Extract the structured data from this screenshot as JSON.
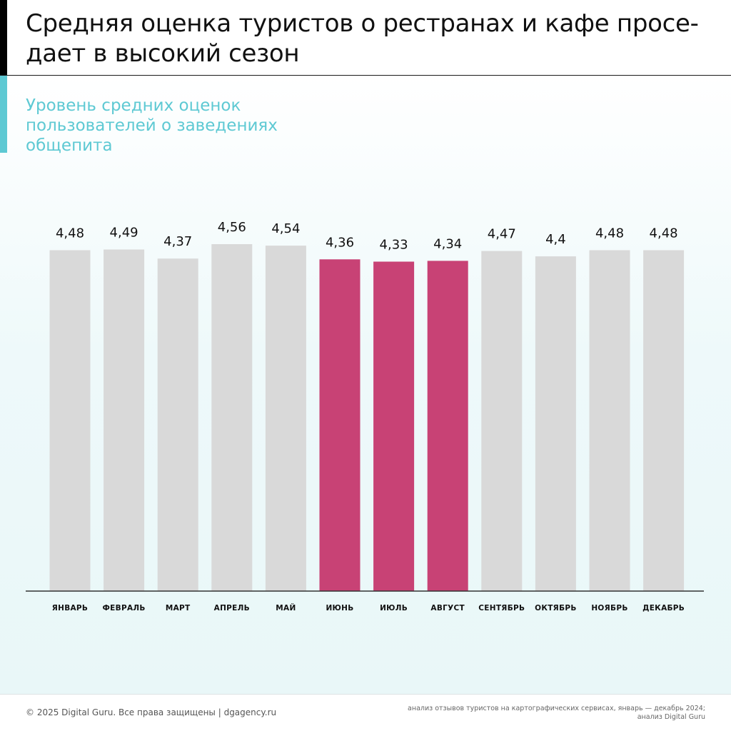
{
  "header": {
    "title": "Средняя оценка туристов о рестранах и кафе просе­дает в высокий сезон"
  },
  "subtitle": "Уровень средних оценок пользователей о заведениях общепита",
  "colors": {
    "bar_default": "#d9d9d9",
    "bar_highlight": "#c84275",
    "accent_teal": "#5ec9d3",
    "axis": "#333333"
  },
  "chart_data": {
    "type": "bar",
    "categories": [
      "ЯНВАРЬ",
      "ФЕВРАЛЬ",
      "МАРТ",
      "АПРЕЛЬ",
      "МАЙ",
      "ИЮНЬ",
      "ИЮЛЬ",
      "АВГУСТ",
      "СЕНТЯБРЬ",
      "ОКТЯБРЬ",
      "НОЯБРЬ",
      "ДЕКАБРЬ"
    ],
    "values": [
      4.48,
      4.49,
      4.37,
      4.56,
      4.54,
      4.36,
      4.33,
      4.34,
      4.47,
      4.4,
      4.48,
      4.48
    ],
    "value_labels": [
      "4,48",
      "4,49",
      "4,37",
      "4,56",
      "4,54",
      "4,36",
      "4,33",
      "4,34",
      "4,47",
      "4,4",
      "4,48",
      "4,48"
    ],
    "highlighted": [
      "ИЮНЬ",
      "ИЮЛЬ",
      "АВГУСТ"
    ],
    "grid": false,
    "legend": "none"
  },
  "footer": {
    "copyright": "© 2025 Digital Guru. Все права защищены | dgagency.ru",
    "source_line1": "анализ отзывов туристов на картографических сервисах, январь — декабрь 2024;",
    "source_line2": "анализ Digital Guru"
  }
}
